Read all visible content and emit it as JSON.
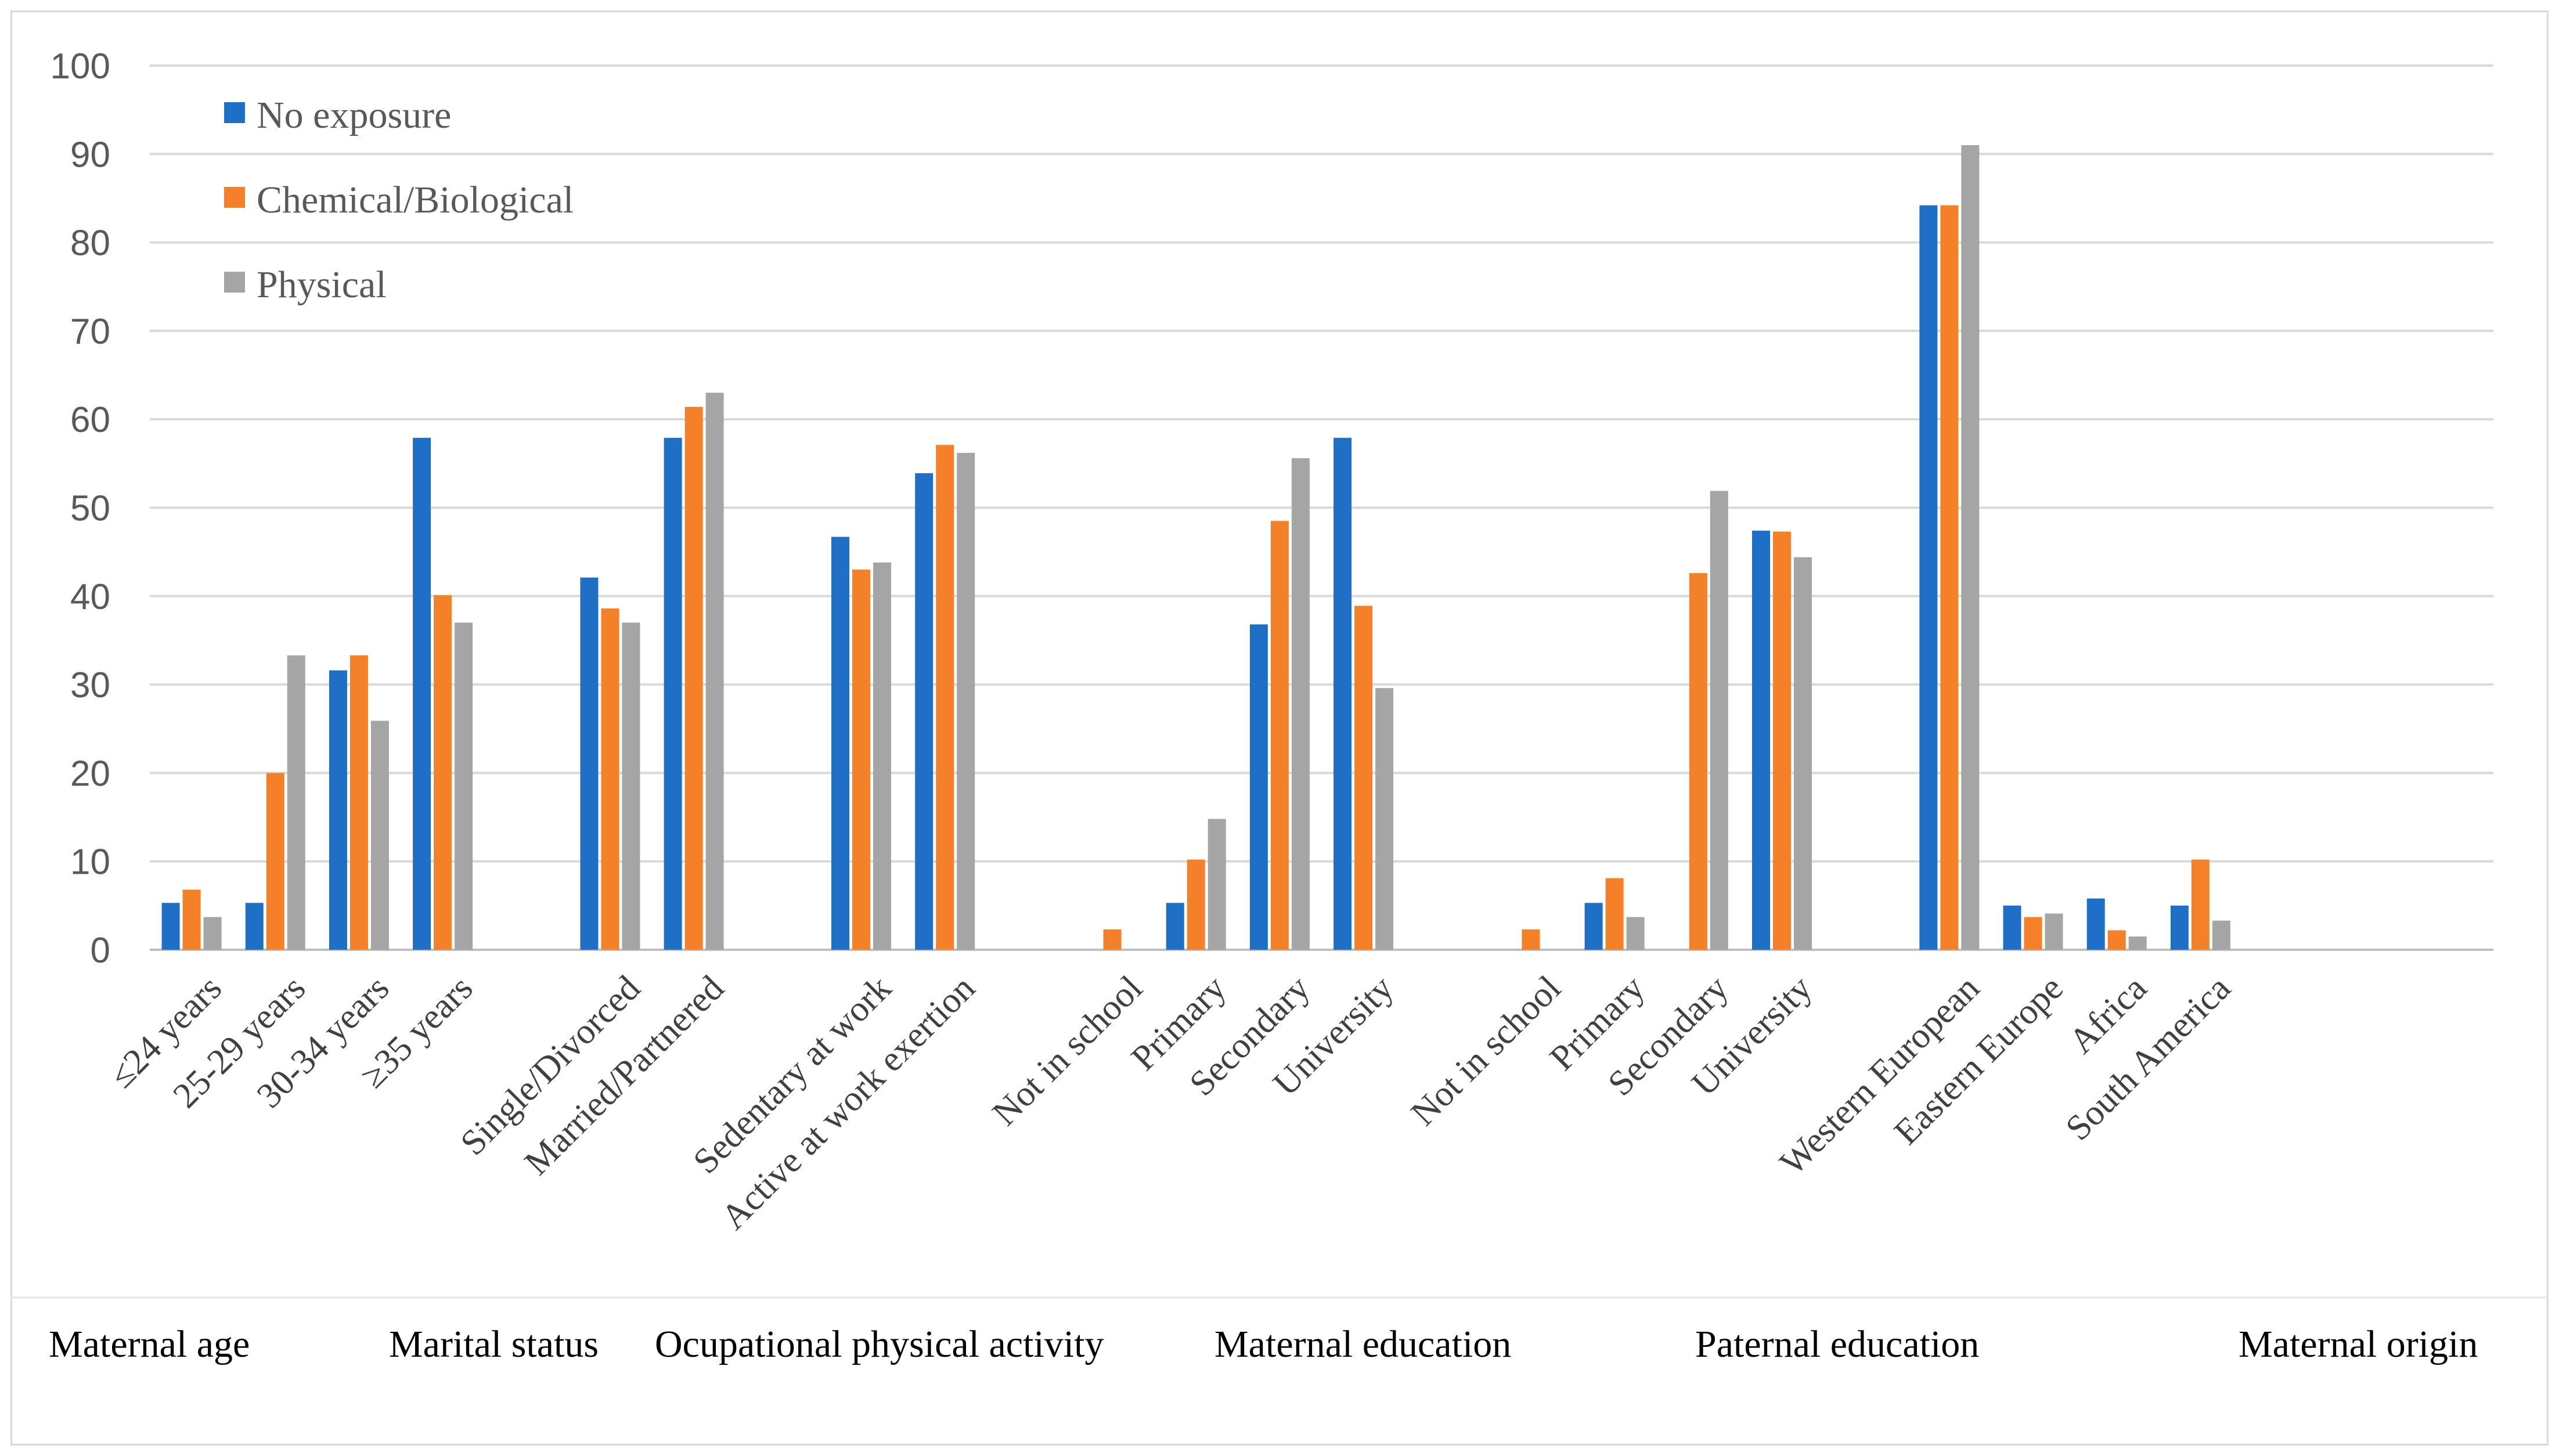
{
  "chart_data": {
    "type": "bar",
    "title": "",
    "xlabel": "",
    "ylabel": "",
    "ylim": [
      0,
      100
    ],
    "yticks": [
      0,
      10,
      20,
      30,
      40,
      50,
      60,
      70,
      80,
      90,
      100
    ],
    "grid": true,
    "legend_position": "top-left",
    "categories": [
      "≤24 years",
      "25-29 years",
      "30-34 years",
      "≥35 years",
      "Single/Divorced",
      "Married/Partnered",
      "Sedentary at work",
      "Active at work exertion",
      "Not in school",
      "Primary",
      "Secondary",
      "University",
      "Not in school",
      "Primary",
      "Secondary",
      "University",
      "Western European",
      "Eastern Europe",
      "Africa",
      "South America"
    ],
    "groups": [
      {
        "label": "Maternal age",
        "categories": [
          0,
          1,
          2,
          3
        ]
      },
      {
        "label": "Marital status",
        "categories": [
          4,
          5
        ]
      },
      {
        "label": "Ocupational physical activity",
        "categories": [
          6,
          7
        ]
      },
      {
        "label": "Maternal education",
        "categories": [
          8,
          9,
          10,
          11
        ]
      },
      {
        "label": "Paternal education",
        "categories": [
          12,
          13,
          14,
          15
        ]
      },
      {
        "label": "Maternal origin",
        "categories": [
          16,
          17,
          18,
          19
        ]
      }
    ],
    "series": [
      {
        "name": "No exposure",
        "color": "#1f6fc6",
        "values": [
          5.3,
          5.3,
          31.6,
          57.9,
          42.1,
          57.9,
          46.7,
          53.9,
          0,
          5.3,
          36.8,
          57.9,
          0,
          5.3,
          0,
          47.4,
          84.2,
          5.0,
          5.8,
          5.0
        ]
      },
      {
        "name": "Chemical/Biological",
        "color": "#f4802a",
        "values": [
          6.8,
          20.0,
          33.3,
          40.1,
          38.6,
          61.4,
          43.0,
          57.1,
          2.3,
          10.2,
          48.5,
          38.9,
          2.3,
          8.1,
          42.6,
          47.3,
          84.2,
          3.7,
          2.2,
          10.2
        ]
      },
      {
        "name": "Physical",
        "color": "#a5a5a5",
        "values": [
          3.7,
          33.3,
          25.9,
          37.0,
          37.0,
          63.0,
          43.8,
          56.2,
          0,
          14.8,
          55.6,
          29.6,
          0,
          3.7,
          51.9,
          44.4,
          91.0,
          4.1,
          1.5,
          3.3
        ]
      }
    ]
  }
}
